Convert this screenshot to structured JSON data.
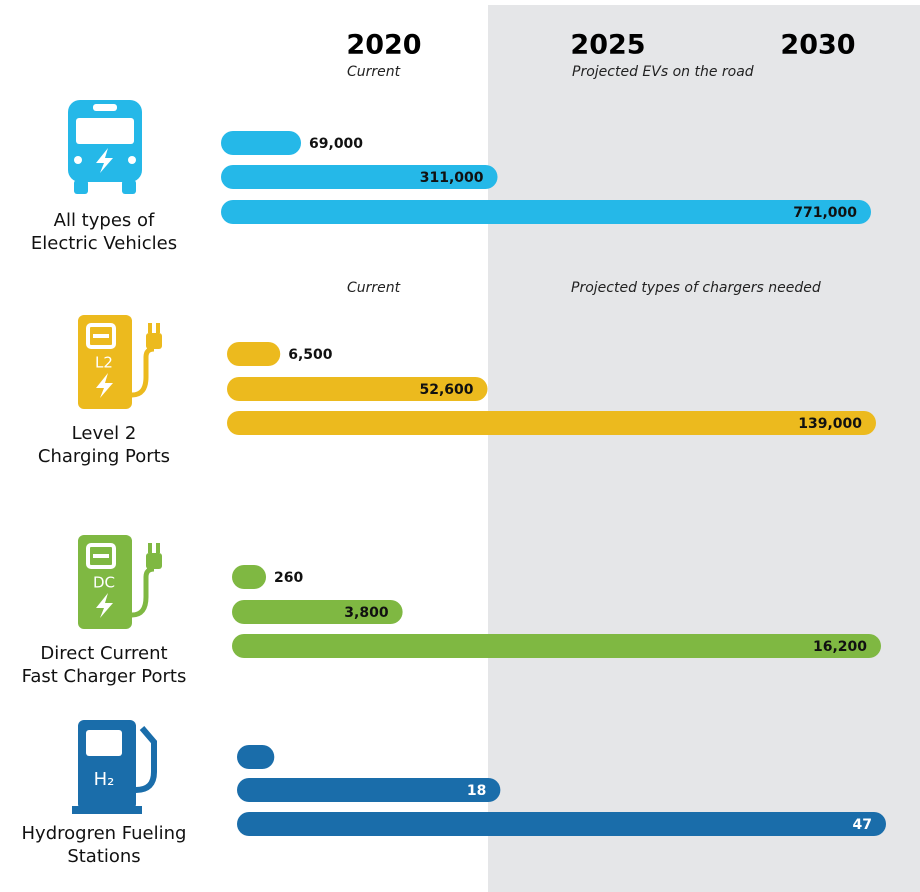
{
  "header": {
    "columns": [
      {
        "year": "2020",
        "note": "Current"
      },
      {
        "year": "2025",
        "note": "Projected EVs on the road"
      },
      {
        "year": "2030"
      }
    ]
  },
  "chart_data": [
    {
      "type": "bar",
      "title": [
        "All types of",
        "Electric Vehicles"
      ],
      "icon": "bus",
      "values": [
        69000,
        311000,
        771000
      ],
      "value_labels": [
        "69,000",
        "311,000",
        "771,000"
      ],
      "color": "#25b8e8"
    },
    {
      "type": "bar",
      "title": [
        "Level 2",
        "Charging Ports"
      ],
      "icon": "charger",
      "icon_label": "L2",
      "notes": [
        "Current",
        "Projected types of chargers needed"
      ],
      "values": [
        6500,
        52600,
        139000
      ],
      "value_labels": [
        "6,500",
        "52,600",
        "139,000"
      ],
      "color": "#ecba1e"
    },
    {
      "type": "bar",
      "title": [
        "Direct Current",
        "Fast Charger Ports"
      ],
      "icon": "charger",
      "icon_label": "DC",
      "values": [
        260,
        3800,
        16200
      ],
      "value_labels": [
        "260",
        "3,800",
        "16,200"
      ],
      "color": "#7fb842"
    },
    {
      "type": "bar",
      "title": [
        "Hydrogren Fueling",
        "Stations"
      ],
      "icon": "pump",
      "icon_label": "H₂",
      "values": [
        1,
        18,
        47
      ],
      "color": "#1a6daa"
    }
  ]
}
